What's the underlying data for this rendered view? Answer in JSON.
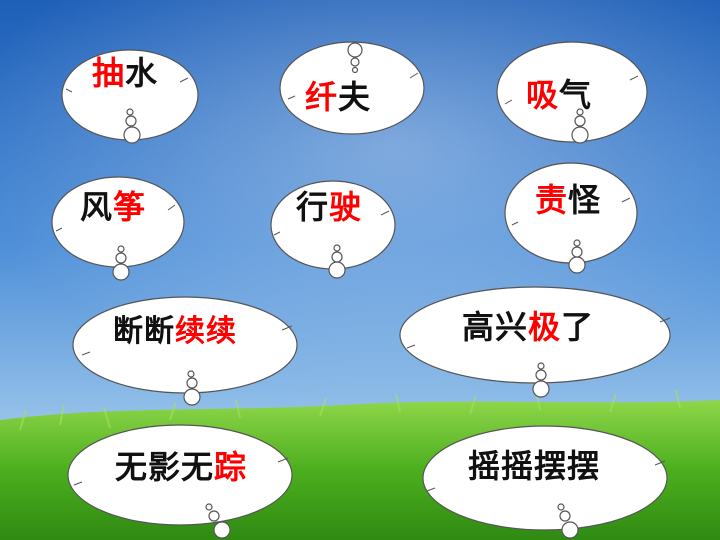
{
  "colors": {
    "highlight": "#ff0000",
    "text": "#111111",
    "sky": "#2a6fc7",
    "grass": "#4caf1e",
    "cloud_fill": "#ffffff"
  },
  "words": [
    {
      "id": "chou-shui",
      "parts": [
        {
          "t": "抽",
          "red": true
        },
        {
          "t": "水",
          "red": false
        }
      ]
    },
    {
      "id": "qian-fu",
      "parts": [
        {
          "t": "纤",
          "red": true
        },
        {
          "t": "夫",
          "red": false
        }
      ]
    },
    {
      "id": "xi-qi",
      "parts": [
        {
          "t": "吸",
          "red": true
        },
        {
          "t": "气",
          "red": false
        }
      ]
    },
    {
      "id": "feng-zheng",
      "parts": [
        {
          "t": "风",
          "red": false
        },
        {
          "t": "筝",
          "red": true
        }
      ]
    },
    {
      "id": "xing-shi",
      "parts": [
        {
          "t": "行",
          "red": false
        },
        {
          "t": "驶",
          "red": true
        }
      ]
    },
    {
      "id": "ze-guai",
      "parts": [
        {
          "t": "责",
          "red": true
        },
        {
          "t": "怪",
          "red": false
        }
      ]
    },
    {
      "id": "duan-duan-xu-xu",
      "parts": [
        {
          "t": "断断",
          "red": false
        },
        {
          "t": "续续",
          "red": true
        }
      ]
    },
    {
      "id": "gao-xing-ji-le",
      "parts": [
        {
          "t": "高兴",
          "red": false
        },
        {
          "t": "极",
          "red": true
        },
        {
          "t": "了",
          "red": false
        }
      ]
    },
    {
      "id": "wu-ying-wu-zong",
      "parts": [
        {
          "t": "无影无",
          "red": false
        },
        {
          "t": "踪",
          "red": true
        }
      ]
    },
    {
      "id": "yao-yao-bai-bai",
      "parts": [
        {
          "t": "摇摇摆摆",
          "red": false
        }
      ]
    }
  ]
}
